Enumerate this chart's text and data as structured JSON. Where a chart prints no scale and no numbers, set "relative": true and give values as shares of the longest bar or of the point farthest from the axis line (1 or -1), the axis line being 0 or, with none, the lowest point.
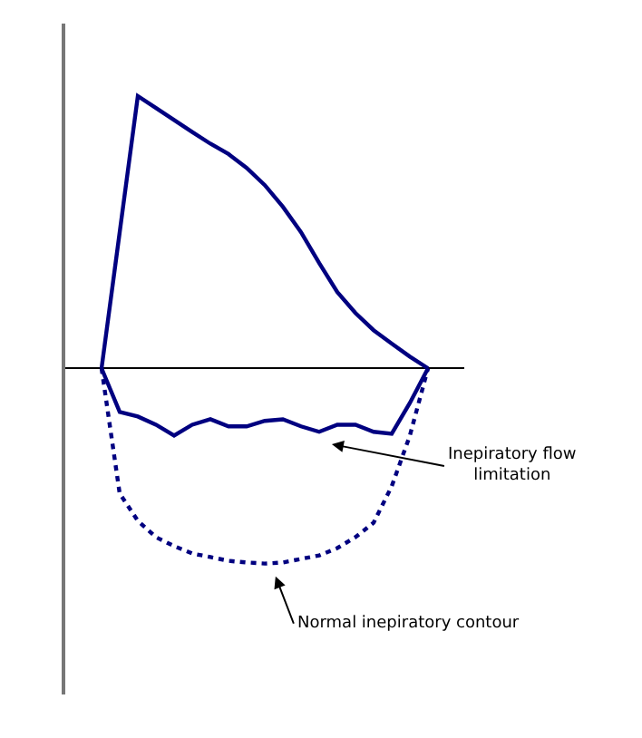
{
  "chart_data": {
    "type": "line",
    "relative": true,
    "marker": "none",
    "categories": [
      null,
      null,
      null,
      null,
      null,
      null,
      null,
      null,
      null,
      null,
      null,
      null,
      null,
      null,
      null,
      null,
      null,
      null,
      null
    ],
    "series": [
      {
        "color": "#000080",
        "line_style": "solid",
        "values": [
          0,
          0.5,
          1.0,
          0.956,
          0.912,
          0.868,
          0.825,
          0.787,
          0.736,
          0.673,
          0.593,
          0.5,
          0.387,
          0.28,
          0.203,
          0.14,
          0.091,
          0.043,
          0
        ]
      },
      {
        "color": "#000080",
        "line_style": "solid",
        "values": [
          0,
          -0.16,
          -0.177,
          -0.207,
          -0.247,
          -0.207,
          -0.187,
          -0.213,
          -0.213,
          -0.193,
          -0.187,
          -0.213,
          -0.233,
          -0.207,
          -0.207,
          -0.233,
          -0.24,
          -0.127,
          0
        ]
      },
      {
        "color": "#000080",
        "line_style": "dotted",
        "values": [
          0,
          -0.46,
          -0.56,
          -0.62,
          -0.653,
          -0.68,
          -0.693,
          -0.707,
          -0.713,
          -0.717,
          -0.713,
          -0.7,
          -0.687,
          -0.66,
          -0.62,
          -0.567,
          -0.433,
          -0.247,
          0
        ]
      }
    ],
    "annotations": [
      "Inepiratory flow\nlimitation",
      "Normal inepiratory contour"
    ]
  }
}
